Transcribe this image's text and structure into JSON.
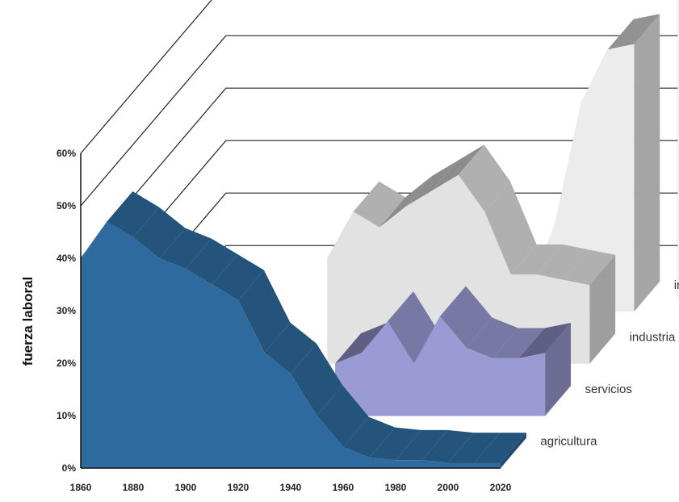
{
  "chart_data": {
    "type": "area",
    "style": "3d-stacked-ribbons",
    "ylabel": "fuerza laboral",
    "x": [
      1860,
      1870,
      1880,
      1890,
      1900,
      1910,
      1920,
      1930,
      1940,
      1950,
      1960,
      1970,
      1980,
      1990,
      2000,
      2010,
      2020
    ],
    "x_ticks": [
      "1860",
      "1880",
      "1900",
      "1920",
      "1940",
      "1960",
      "1980",
      "2000",
      "2020"
    ],
    "y_ticks": [
      "0%",
      "10%",
      "20%",
      "30%",
      "40%",
      "50%",
      "60%"
    ],
    "ylim": [
      0,
      60
    ],
    "grid": true,
    "series": [
      {
        "name": "agricultura",
        "values": [
          40,
          47,
          44,
          40,
          38,
          35,
          32,
          22,
          18,
          10,
          4,
          2,
          1.5,
          1.5,
          1,
          1,
          1
        ],
        "color": "#2e6a9e"
      },
      {
        "name": "servicios",
        "values": [
          null,
          null,
          null,
          null,
          null,
          null,
          null,
          null,
          10,
          12,
          18,
          10,
          19,
          13,
          11,
          11,
          12
        ],
        "color": "#9a9ad4"
      },
      {
        "name": "industria",
        "values": [
          null,
          null,
          null,
          null,
          null,
          null,
          20,
          29,
          26,
          30,
          33,
          36,
          29,
          17,
          17,
          16,
          15
        ],
        "color": "#e2e2e2"
      },
      {
        "name": "información",
        "values": [
          null,
          null,
          null,
          null,
          null,
          null,
          null,
          null,
          null,
          null,
          null,
          null,
          3,
          17,
          40,
          50,
          51
        ],
        "color": "#ececec"
      }
    ]
  }
}
